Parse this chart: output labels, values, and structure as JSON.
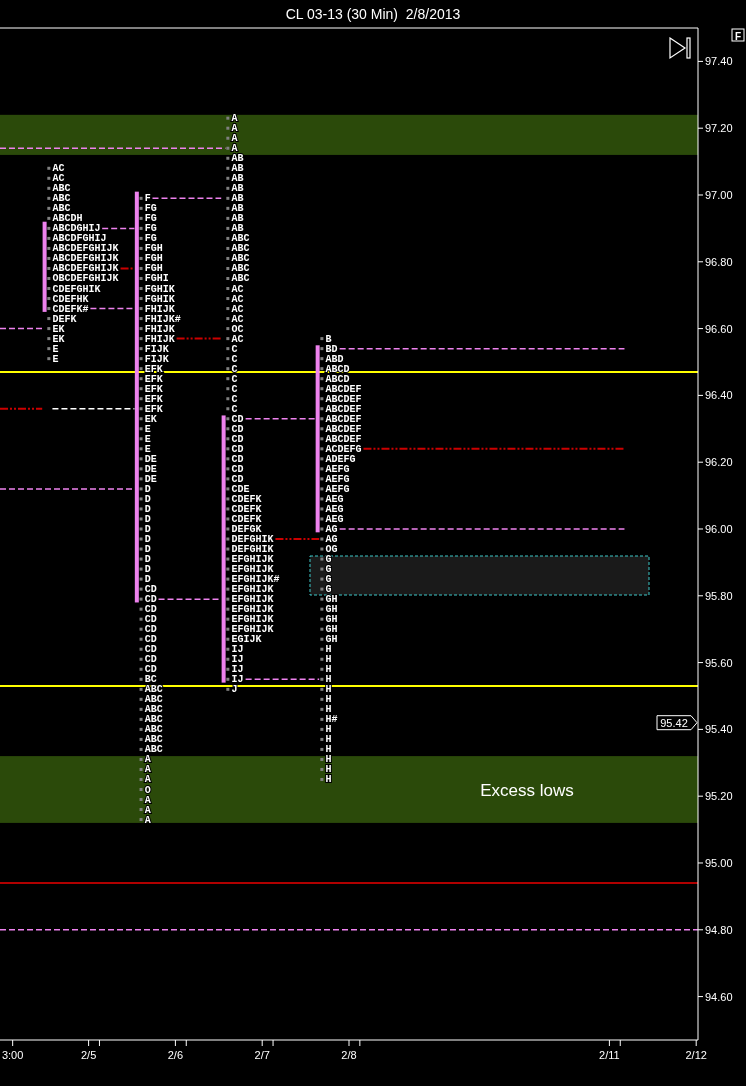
{
  "chart_data": {
    "type": "line",
    "title": "CL 03-13 (30 Min)  2/8/2013",
    "xlim": [
      "2013-02-03T23:30",
      "2013-02-12T00:30"
    ],
    "xticks": [
      {
        "value": "2013-02-04T03:00",
        "label": "3:00"
      },
      {
        "value": "2013-02-05",
        "label": "2/5"
      },
      {
        "value": "2013-02-05T03:00",
        "label": null
      },
      {
        "value": "2013-02-06",
        "label": "2/6"
      },
      {
        "value": "2013-02-06T03:00",
        "label": null
      },
      {
        "value": "2013-02-07",
        "label": "2/7"
      },
      {
        "value": "2013-02-07T03:00",
        "label": null
      },
      {
        "value": "2013-02-08",
        "label": "2/8"
      },
      {
        "value": "2013-02-08T03:00",
        "label": null
      },
      {
        "value": "2013-02-11",
        "label": "2/11"
      },
      {
        "value": "2013-02-11T03:00",
        "label": null
      },
      {
        "value": "2013-02-12",
        "label": "2/12"
      }
    ],
    "ylim": [
      94.47,
      97.5
    ],
    "yticks": [
      {
        "value": 94.6,
        "label": "94.60"
      },
      {
        "value": 94.8,
        "label": "94.80"
      },
      {
        "value": 95.0,
        "label": "95.00"
      },
      {
        "value": 95.2,
        "label": "95.20"
      },
      {
        "value": 95.4,
        "label": "95.40"
      },
      {
        "value": 95.6,
        "label": "95.60"
      },
      {
        "value": 95.8,
        "label": "95.80"
      },
      {
        "value": 96.0,
        "label": "96.00"
      },
      {
        "value": 96.2,
        "label": "96.20"
      },
      {
        "value": 96.4,
        "label": "96.40"
      },
      {
        "value": 96.6,
        "label": "96.60"
      },
      {
        "value": 96.8,
        "label": "96.80"
      },
      {
        "value": 97.0,
        "label": "97.00"
      },
      {
        "value": 97.2,
        "label": "97.20"
      },
      {
        "value": 97.4,
        "label": "97.40"
      }
    ],
    "bands": [
      {
        "axis": "y",
        "from": 97.12,
        "to": 97.24,
        "color": "#2b4a0a"
      },
      {
        "axis": "y",
        "from": 95.12,
        "to": 95.32,
        "color": "#2b4a0a",
        "label": "Excess lows"
      }
    ],
    "ref_lines": [
      {
        "axis": "y",
        "value": 96.47,
        "color": "#ffff00"
      },
      {
        "axis": "y",
        "value": 95.53,
        "color": "#ffff00"
      },
      {
        "axis": "y",
        "value": 94.94,
        "color": "#b00000"
      },
      {
        "axis": "y",
        "value": 94.8,
        "color": "#ee82ee",
        "line_style": "dashed"
      }
    ],
    "annotations": [
      "F",
      "95.42"
    ],
    "series": [
      {
        "type": "bar",
        "color": "#ee82ee",
        "x": [
          "2013-02-04T11:50",
          "2013-02-05T13:20",
          "2013-02-06T13:20",
          "2013-02-07T15:20"
        ],
        "base": [
          96.65,
          95.78,
          95.54,
          95.99
        ],
        "values": [
          0.27,
          1.23,
          0.8,
          0.56
        ]
      },
      {
        "color": "#ee82ee",
        "line_style": "dashed",
        "x": [
          "2013-02-03T23:30",
          "2013-02-06T13:50"
        ],
        "values": [
          97.14,
          97.14
        ]
      },
      {
        "color": "#ee82ee",
        "line_style": "dashed",
        "x": [
          "2013-02-05T03:45",
          "2013-02-05T12:40"
        ],
        "values": [
          96.9,
          96.9
        ]
      },
      {
        "color": "#cc0000",
        "line_style": "dotted",
        "x": [
          "2013-02-05T08:50",
          "2013-02-05T12:40"
        ],
        "values": [
          96.78,
          96.78
        ]
      },
      {
        "color": "#ee82ee",
        "line_style": "dashed",
        "x": [
          "2013-02-05T00:30",
          "2013-02-05T12:40"
        ],
        "values": [
          96.66,
          96.66
        ]
      },
      {
        "color": "#ee82ee",
        "line_style": "dashed",
        "x": [
          "2013-02-03T23:30",
          "2013-02-04T11:10"
        ],
        "values": [
          96.6,
          96.6
        ]
      },
      {
        "color": "#cc0000",
        "line_style": "dotted",
        "x": [
          "2013-02-03T23:30",
          "2013-02-04T11:10"
        ],
        "values": [
          96.36,
          96.36
        ]
      },
      {
        "color": "#ffffff",
        "line_style": "dashed",
        "x": [
          "2013-02-04T14:00",
          "2013-02-05T12:40"
        ],
        "values": [
          96.36,
          96.36
        ]
      },
      {
        "color": "#ee82ee",
        "line_style": "dashed",
        "x": [
          "2013-02-03T23:30",
          "2013-02-05T12:40"
        ],
        "values": [
          96.12,
          96.12
        ]
      },
      {
        "color": "#ee82ee",
        "line_style": "dashed",
        "x": [
          "2013-02-05T17:40",
          "2013-02-06T12:40"
        ],
        "values": [
          96.99,
          96.99
        ]
      },
      {
        "color": "#cc0000",
        "line_style": "dotted",
        "x": [
          "2013-02-06T00:20",
          "2013-02-06T12:40"
        ],
        "values": [
          96.57,
          96.57
        ]
      },
      {
        "color": "#ee82ee",
        "line_style": "dashed",
        "x": [
          "2013-02-05T19:20",
          "2013-02-06T12:40"
        ],
        "values": [
          95.79,
          95.79
        ]
      },
      {
        "color": "#ee82ee",
        "line_style": "dashed",
        "x": [
          "2013-02-06T19:25",
          "2013-02-07T14:40"
        ],
        "values": [
          96.33,
          96.33
        ]
      },
      {
        "color": "#cc0000",
        "line_style": "dotted",
        "x": [
          "2013-02-07T03:40",
          "2013-02-07T15:45"
        ],
        "values": [
          95.97,
          95.97
        ]
      },
      {
        "color": "#ee82ee",
        "line_style": "dashed",
        "x": [
          "2013-02-06T19:25",
          "2013-02-07T15:45"
        ],
        "values": [
          95.55,
          95.55
        ]
      },
      {
        "color": "#ee82ee",
        "line_style": "dashed",
        "x": [
          "2013-02-07T21:25",
          "2013-02-11T04:10"
        ],
        "values": [
          96.54,
          96.54
        ]
      },
      {
        "color": "#cc0000",
        "line_style": "dotted",
        "x": [
          "2013-02-08T04:00",
          "2013-02-11T04:10"
        ],
        "values": [
          96.24,
          96.24
        ]
      },
      {
        "color": "#ee82ee",
        "line_style": "dashed",
        "x": [
          "2013-02-07T21:25",
          "2013-02-11T04:10"
        ],
        "values": [
          96.0,
          96.0
        ]
      },
      {
        "type": "scatter",
        "color": "#808080",
        "marker": "square",
        "x": [
          "2013-02-04T13:00",
          "2013-02-04T13:00",
          "2013-02-04T13:00",
          "2013-02-04T13:00",
          "2013-02-04T13:00",
          "2013-02-04T13:00",
          "2013-02-04T13:00",
          "2013-02-04T13:00",
          "2013-02-04T13:00",
          "2013-02-04T13:00",
          "2013-02-04T13:00",
          "2013-02-04T13:00",
          "2013-02-04T13:00",
          "2013-02-04T13:00",
          "2013-02-04T13:00",
          "2013-02-04T13:00",
          "2013-02-04T13:00",
          "2013-02-04T13:00",
          "2013-02-04T13:00",
          "2013-02-04T13:00"
        ],
        "values": [
          97.08,
          97.05,
          97.02,
          96.99,
          96.96,
          96.93,
          96.9,
          96.87,
          96.84,
          96.81,
          96.78,
          96.75,
          96.72,
          96.69,
          96.66,
          96.63,
          96.6,
          96.57,
          96.54,
          96.51
        ],
        "value_labels": [
          "AC",
          "AC",
          "ABC",
          "ABC",
          "ABC",
          "ABCDH",
          "ABCDGHIJ",
          "ABCDFGHIJ",
          "ABCDEFGHIJK",
          "ABCDEFGHIJK",
          "ABCDEFGHIJK",
          "OBCDEFGHIJK",
          "CDEFGHIK",
          "CDEFHK",
          "CDEFK#",
          "DEFK",
          "EK",
          "EK",
          "E",
          "E"
        ]
      },
      {
        "type": "scatter",
        "color": "#808080",
        "marker": "square",
        "x": [
          "2013-02-05T14:30",
          "2013-02-05T14:30",
          "2013-02-05T14:30",
          "2013-02-05T14:30",
          "2013-02-05T14:30",
          "2013-02-05T14:30",
          "2013-02-05T14:30",
          "2013-02-05T14:30",
          "2013-02-05T14:30",
          "2013-02-05T14:30",
          "2013-02-05T14:30",
          "2013-02-05T14:30",
          "2013-02-05T14:30",
          "2013-02-05T14:30",
          "2013-02-05T14:30",
          "2013-02-05T14:30",
          "2013-02-05T14:30",
          "2013-02-05T14:30",
          "2013-02-05T14:30",
          "2013-02-05T14:30",
          "2013-02-05T14:30",
          "2013-02-05T14:30",
          "2013-02-05T14:30",
          "2013-02-05T14:30",
          "2013-02-05T14:30",
          "2013-02-05T14:30",
          "2013-02-05T14:30",
          "2013-02-05T14:30",
          "2013-02-05T14:30",
          "2013-02-05T14:30",
          "2013-02-05T14:30",
          "2013-02-05T14:30",
          "2013-02-05T14:30",
          "2013-02-05T14:30",
          "2013-02-05T14:30",
          "2013-02-05T14:30",
          "2013-02-05T14:30",
          "2013-02-05T14:30",
          "2013-02-05T14:30",
          "2013-02-05T14:30",
          "2013-02-05T14:30",
          "2013-02-05T14:30",
          "2013-02-05T14:30",
          "2013-02-05T14:30",
          "2013-02-05T14:30",
          "2013-02-05T14:30",
          "2013-02-05T14:30",
          "2013-02-05T14:30",
          "2013-02-05T14:30",
          "2013-02-05T14:30",
          "2013-02-05T14:30",
          "2013-02-05T14:30",
          "2013-02-05T14:30",
          "2013-02-05T14:30",
          "2013-02-05T14:30",
          "2013-02-05T14:30",
          "2013-02-05T14:30",
          "2013-02-05T14:30",
          "2013-02-05T14:30",
          "2013-02-05T14:30",
          "2013-02-05T14:30",
          "2013-02-05T14:30",
          "2013-02-05T14:30"
        ],
        "values": [
          96.99,
          96.96,
          96.93,
          96.9,
          96.87,
          96.84,
          96.81,
          96.78,
          96.75,
          96.72,
          96.69,
          96.66,
          96.63,
          96.6,
          96.57,
          96.54,
          96.51,
          96.48,
          96.45,
          96.42,
          96.39,
          96.36,
          96.33,
          96.3,
          96.27,
          96.24,
          96.21,
          96.18,
          96.15,
          96.12,
          96.09,
          96.06,
          96.03,
          96.0,
          95.97,
          95.94,
          95.91,
          95.88,
          95.85,
          95.82,
          95.79,
          95.76,
          95.73,
          95.7,
          95.67,
          95.64,
          95.61,
          95.58,
          95.55,
          95.52,
          95.49,
          95.46,
          95.43,
          95.4,
          95.37,
          95.34,
          95.31,
          95.28,
          95.25,
          95.22,
          95.19,
          95.16,
          95.13
        ],
        "value_labels": [
          "F",
          "FG",
          "FG",
          "FG",
          "FG",
          "FGH",
          "FGH",
          "FGH",
          "FGHI",
          "FGHIK",
          "FGHIK",
          "FHIJK",
          "FHIJK#",
          "FHIJK",
          "FHIJK",
          "FIJK",
          "FIJK",
          "EFK",
          "EFK",
          "EFK",
          "EFK",
          "EFK",
          "EK",
          "E",
          "E",
          "E",
          "DE",
          "DE",
          "DE",
          "D",
          "D",
          "D",
          "D",
          "D",
          "D",
          "D",
          "D",
          "D",
          "D",
          "CD",
          "CD",
          "CD",
          "CD",
          "CD",
          "CD",
          "CD",
          "CD",
          "CD",
          "BC",
          "ABC",
          "ABC",
          "ABC",
          "ABC",
          "ABC",
          "ABC",
          "ABC",
          "A",
          "A",
          "A",
          "O",
          "A",
          "A",
          "A"
        ]
      },
      {
        "type": "scatter",
        "color": "#808080",
        "marker": "square",
        "x": [
          "2013-02-06T14:30",
          "2013-02-06T14:30",
          "2013-02-06T14:30",
          "2013-02-06T14:30",
          "2013-02-06T14:30",
          "2013-02-06T14:30",
          "2013-02-06T14:30",
          "2013-02-06T14:30",
          "2013-02-06T14:30",
          "2013-02-06T14:30",
          "2013-02-06T14:30",
          "2013-02-06T14:30",
          "2013-02-06T14:30",
          "2013-02-06T14:30",
          "2013-02-06T14:30",
          "2013-02-06T14:30",
          "2013-02-06T14:30",
          "2013-02-06T14:30",
          "2013-02-06T14:30",
          "2013-02-06T14:30",
          "2013-02-06T14:30",
          "2013-02-06T14:30",
          "2013-02-06T14:30",
          "2013-02-06T14:30",
          "2013-02-06T14:30",
          "2013-02-06T14:30",
          "2013-02-06T14:30",
          "2013-02-06T14:30",
          "2013-02-06T14:30",
          "2013-02-06T14:30",
          "2013-02-06T14:30",
          "2013-02-06T14:30",
          "2013-02-06T14:30",
          "2013-02-06T14:30",
          "2013-02-06T14:30",
          "2013-02-06T14:30",
          "2013-02-06T14:30",
          "2013-02-06T14:30",
          "2013-02-06T14:30",
          "2013-02-06T14:30",
          "2013-02-06T14:30",
          "2013-02-06T14:30",
          "2013-02-06T14:30",
          "2013-02-06T14:30",
          "2013-02-06T14:30",
          "2013-02-06T14:30",
          "2013-02-06T14:30",
          "2013-02-06T14:30",
          "2013-02-06T14:30",
          "2013-02-06T14:30",
          "2013-02-06T14:30",
          "2013-02-06T14:30",
          "2013-02-06T14:30",
          "2013-02-06T14:30",
          "2013-02-06T14:30",
          "2013-02-06T14:30",
          "2013-02-06T14:30",
          "2013-02-06T14:30"
        ],
        "values": [
          97.23,
          97.2,
          97.17,
          97.14,
          97.11,
          97.08,
          97.05,
          97.02,
          96.99,
          96.96,
          96.93,
          96.9,
          96.87,
          96.84,
          96.81,
          96.78,
          96.75,
          96.72,
          96.69,
          96.66,
          96.63,
          96.6,
          96.57,
          96.54,
          96.51,
          96.48,
          96.45,
          96.42,
          96.39,
          96.36,
          96.33,
          96.3,
          96.27,
          96.24,
          96.21,
          96.18,
          96.15,
          96.12,
          96.09,
          96.06,
          96.03,
          96.0,
          95.97,
          95.94,
          95.91,
          95.88,
          95.85,
          95.82,
          95.79,
          95.76,
          95.73,
          95.7,
          95.67,
          95.64,
          95.61,
          95.58,
          95.55,
          95.52
        ],
        "value_labels": [
          "A",
          "A",
          "A",
          "A",
          "AB",
          "AB",
          "AB",
          "AB",
          "AB",
          "AB",
          "AB",
          "AB",
          "ABC",
          "ABC",
          "ABC",
          "ABC",
          "ABC",
          "AC",
          "AC",
          "AC",
          "AC",
          "OC",
          "AC",
          "C",
          "C",
          "C",
          "C",
          "C",
          "C",
          "C",
          "CD",
          "CD",
          "CD",
          "CD",
          "CD",
          "CD",
          "CD",
          "CDE",
          "CDEFK",
          "CDEFK",
          "CDEFK",
          "DEFGK",
          "DEFGHIK",
          "DEFGHIK",
          "EFGHIJK",
          "EFGHIJK",
          "EFGHIJK#",
          "EFGHIJK",
          "EFGHIJK",
          "EFGHIJK",
          "EFGHIJK",
          "EFGHIJK",
          "EGIJK",
          "IJ",
          "IJ",
          "IJ",
          "IJ",
          "J"
        ]
      },
      {
        "type": "scatter",
        "color": "#808080",
        "marker": "square",
        "x": [
          "2013-02-07T16:30",
          "2013-02-07T16:30",
          "2013-02-07T16:30",
          "2013-02-07T16:30",
          "2013-02-07T16:30",
          "2013-02-07T16:30",
          "2013-02-07T16:30",
          "2013-02-07T16:30",
          "2013-02-07T16:30",
          "2013-02-07T16:30",
          "2013-02-07T16:30",
          "2013-02-07T16:30",
          "2013-02-07T16:30",
          "2013-02-07T16:30",
          "2013-02-07T16:30",
          "2013-02-07T16:30",
          "2013-02-07T16:30",
          "2013-02-07T16:30",
          "2013-02-07T16:30",
          "2013-02-07T16:30",
          "2013-02-07T16:30",
          "2013-02-07T16:30",
          "2013-02-07T16:30",
          "2013-02-07T16:30",
          "2013-02-07T16:30",
          "2013-02-07T16:30",
          "2013-02-07T16:30",
          "2013-02-07T16:30",
          "2013-02-07T16:30",
          "2013-02-07T16:30",
          "2013-02-07T16:30",
          "2013-02-07T16:30",
          "2013-02-07T16:30",
          "2013-02-07T16:30",
          "2013-02-07T16:30",
          "2013-02-07T16:30",
          "2013-02-07T16:30",
          "2013-02-07T16:30",
          "2013-02-07T16:30",
          "2013-02-07T16:30",
          "2013-02-07T16:30",
          "2013-02-07T16:30",
          "2013-02-07T16:30",
          "2013-02-07T16:30",
          "2013-02-07T16:30"
        ],
        "values": [
          96.57,
          96.54,
          96.51,
          96.48,
          96.45,
          96.42,
          96.39,
          96.36,
          96.33,
          96.3,
          96.27,
          96.24,
          96.21,
          96.18,
          96.15,
          96.12,
          96.09,
          96.06,
          96.03,
          96.0,
          95.97,
          95.94,
          95.91,
          95.88,
          95.85,
          95.82,
          95.79,
          95.76,
          95.73,
          95.7,
          95.67,
          95.64,
          95.61,
          95.58,
          95.55,
          95.52,
          95.49,
          95.46,
          95.43,
          95.4,
          95.37,
          95.34,
          95.31,
          95.28,
          95.25
        ],
        "value_labels": [
          "B",
          "BD",
          "ABD",
          "ABCD",
          "ABCD",
          "ABCDEF",
          "ABCDEF",
          "ABCDEF",
          "ABCDEF",
          "ABCDEF",
          "ABCDEF",
          "ACDEFG",
          "ADEFG",
          "AEFG",
          "AEFG",
          "AEFG",
          "AEG",
          "AEG",
          "AEG",
          "AG",
          "AG",
          "OG",
          "G",
          "G",
          "G",
          "G",
          "GH",
          "GH",
          "GH",
          "GH",
          "GH",
          "H",
          "H",
          "H",
          "H",
          "H",
          "H",
          "H",
          "H#",
          "H",
          "H",
          "H",
          "H",
          "H",
          "H"
        ]
      }
    ]
  }
}
